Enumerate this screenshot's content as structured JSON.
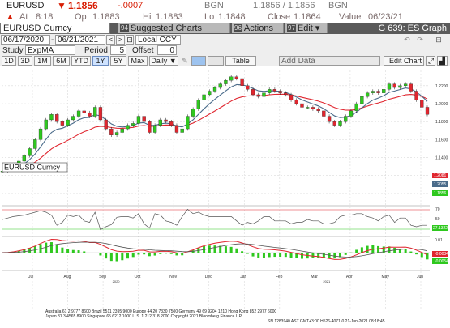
{
  "header": {
    "ticker": "EURUSD",
    "last": "1.1856",
    "change": "-.0007",
    "bgn_label": "BGN",
    "bid_ask": "1.1856 / 1.1856",
    "bgn_label2": "BGN",
    "time_label": "At",
    "time": "8:18",
    "open_label": "Op",
    "open": "1.1883",
    "high_label": "Hi",
    "high": "1.1883",
    "low_label": "Lo",
    "low": "1.1848",
    "close_label": "Close",
    "close": "1.1864",
    "value_label": "Value",
    "value_date": "06/23/21"
  },
  "toolbar": {
    "security": "EURUSD Curncy",
    "suggested_num": "94",
    "suggested_label": "Suggested Charts",
    "actions_num": "96",
    "actions_label": "Actions ▾",
    "edit_num": "97",
    "edit_label": "Edit ▾",
    "graph_title": "G 639: ES Graph"
  },
  "controls": {
    "date_from": "06/17/2020",
    "date_to": "06/21/2021",
    "currency": "Local CCY",
    "study_label": "Study",
    "study_value": "ExpMA",
    "period_label": "Period",
    "period_value": "5",
    "offset_label": "Offset",
    "offset_value": "0",
    "ranges": [
      "1D",
      "3D",
      "1M",
      "6M",
      "YTD",
      "1Y",
      "5Y",
      "Max"
    ],
    "selected_range": "1Y",
    "frequency": "Daily ▼",
    "table_label": "Table",
    "add_data_label": "Add Data",
    "edit_chart_label": "Edit Chart"
  },
  "chart_data": {
    "type": "line",
    "series": [
      {
        "values": [
          1.125,
          1.127,
          1.131,
          1.136,
          1.142,
          1.15,
          1.16,
          1.172,
          1.182,
          1.188,
          1.18,
          1.176,
          1.182,
          1.186,
          1.192,
          1.19,
          1.186,
          1.196,
          1.182,
          1.172,
          1.165,
          1.168,
          1.172,
          1.176,
          1.178,
          1.186,
          1.18,
          1.168,
          1.176,
          1.182,
          1.18,
          1.176,
          1.168,
          1.172,
          1.186,
          1.194,
          1.204,
          1.21,
          1.214,
          1.218,
          1.222,
          1.226,
          1.23,
          1.228,
          1.22,
          1.216,
          1.21,
          1.208,
          1.212,
          1.216,
          1.214,
          1.212,
          1.21,
          1.204,
          1.2,
          1.196,
          1.196,
          1.194,
          1.192,
          1.186,
          1.18,
          1.176,
          1.18,
          1.186,
          1.192,
          1.2,
          1.208,
          1.212,
          1.214,
          1.212,
          1.216,
          1.222,
          1.218,
          1.22,
          1.222,
          1.214,
          1.204,
          1.196,
          1.188
        ]
      },
      {
        "values": []
      },
      {
        "values": []
      }
    ],
    "y_ticks": [
      "1.2200",
      "1.2000",
      "1.1800",
      "1.1600",
      "1.1400",
      "1.1200",
      "1.1000"
    ],
    "ylim": [
      1.09,
      1.237
    ],
    "last_labels": [
      "1.2081",
      "1.2055",
      "1.1856"
    ],
    "x_ticks": [
      "Jul",
      "Aug",
      "Sep",
      "Oct",
      "Nov",
      "Dec",
      "Jan",
      "Feb",
      "Mar",
      "Apr",
      "May",
      "Jun"
    ],
    "year_labels": [
      "2020",
      "2021"
    ],
    "indicator_ticks": [
      "70",
      "50",
      "30"
    ],
    "indicator_last": "27.1322",
    "macd_last": [
      "0.01",
      "-0.0034",
      "-0.0054"
    ]
  },
  "footer": {
    "line1": "Australia 61 2 9777 8600 Brazil 5511 2395 9000 Europe 44 20 7330 7500 Germany 49 69 9204 1210 Hong Kong 852 2977 6000",
    "line2": "Japan 81 3 4565 8900        Singapore 65 6212 1000        U.S. 1 212 318 2000        Copyright 2021 Bloomberg Finance L.P.",
    "line3": "SN 1283940 AST  GMT+3:00 H526-4071-0 21-Jun-2021 08:18:45"
  }
}
